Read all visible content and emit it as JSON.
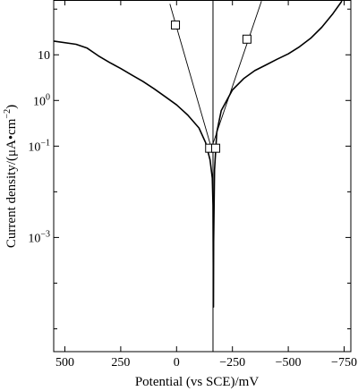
{
  "chart_data": {
    "type": "line",
    "title": "",
    "xlabel": "Potential (vs SCE)/mV",
    "ylabel_prefix": "Current density/(μA•cm",
    "ylabel_sup": "−2",
    "ylabel_suffix": ")",
    "x_axis_reversed": true,
    "x_scale": "linear",
    "y_scale": "log",
    "xlim": [
      550,
      -780
    ],
    "ylim_log10": [
      -5.5,
      2.2
    ],
    "x_ticks": [
      {
        "value": 500,
        "label": "500"
      },
      {
        "value": 250,
        "label": "250"
      },
      {
        "value": 0,
        "label": "0"
      },
      {
        "value": -250,
        "label": "−250"
      },
      {
        "value": -500,
        "label": "−500"
      },
      {
        "value": -750,
        "label": "−750"
      }
    ],
    "y_ticks": [
      {
        "exp": 1,
        "base": "10",
        "sup": ""
      },
      {
        "exp": 0,
        "base": "10",
        "sup": "0"
      },
      {
        "exp": -1,
        "base": "10",
        "sup": "−1"
      },
      {
        "exp": -3,
        "base": "10",
        "sup": "−3"
      }
    ],
    "y_minor_ticks": [
      2,
      -2,
      -4,
      -5
    ],
    "grid": false,
    "series": [
      {
        "kind": "polarization-curve",
        "anodic_branch": [
          {
            "x": 550,
            "y": 20
          },
          {
            "x": 450,
            "y": 17
          },
          {
            "x": 400,
            "y": 14
          },
          {
            "x": 350,
            "y": 9.5
          },
          {
            "x": 300,
            "y": 6.8
          },
          {
            "x": 250,
            "y": 5.0
          },
          {
            "x": 200,
            "y": 3.6
          },
          {
            "x": 150,
            "y": 2.6
          },
          {
            "x": 100,
            "y": 1.8
          },
          {
            "x": 50,
            "y": 1.2
          },
          {
            "x": 0,
            "y": 0.8
          },
          {
            "x": -50,
            "y": 0.48
          },
          {
            "x": -100,
            "y": 0.25
          },
          {
            "x": -130,
            "y": 0.12
          },
          {
            "x": -150,
            "y": 0.05
          },
          {
            "x": -160,
            "y": 0.02
          },
          {
            "x": -163,
            "y": 0.005
          },
          {
            "x": -165,
            "y": 3e-05
          }
        ],
        "cathodic_branch": [
          {
            "x": -165,
            "y": 3e-05
          },
          {
            "x": -166,
            "y": 0.0008
          },
          {
            "x": -170,
            "y": 0.03
          },
          {
            "x": -180,
            "y": 0.2
          },
          {
            "x": -200,
            "y": 0.6
          },
          {
            "x": -250,
            "y": 1.7
          },
          {
            "x": -300,
            "y": 3.0
          },
          {
            "x": -350,
            "y": 4.5
          },
          {
            "x": -400,
            "y": 6.0
          },
          {
            "x": -450,
            "y": 8.0
          },
          {
            "x": -500,
            "y": 10.5
          },
          {
            "x": -550,
            "y": 15
          },
          {
            "x": -600,
            "y": 23
          },
          {
            "x": -650,
            "y": 40
          },
          {
            "x": -700,
            "y": 80
          },
          {
            "x": -740,
            "y": 150
          }
        ]
      }
    ],
    "tafel_lines": [
      {
        "x1": -156,
        "y1": 0.09,
        "x2": 30,
        "y2": 130,
        "marker": {
          "x": 5,
          "y": 45
        }
      },
      {
        "x1": -156,
        "y1": 0.09,
        "x2": -380,
        "y2": 150,
        "marker": {
          "x": -315,
          "y": 22
        }
      }
    ],
    "intersection_markers": [
      {
        "x": -148,
        "y": 0.09
      },
      {
        "x": -175,
        "y": 0.09
      }
    ],
    "corrosion_potential_line": {
      "x": -163
    }
  }
}
